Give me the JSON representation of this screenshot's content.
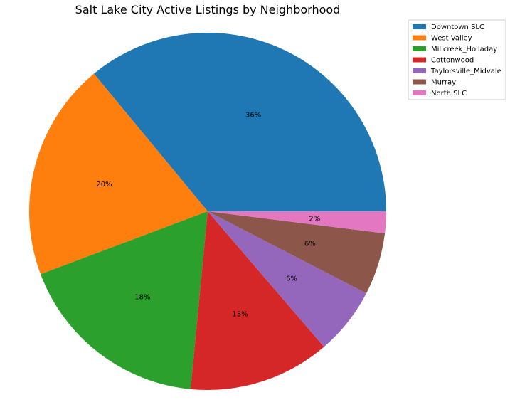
{
  "chart_data": {
    "type": "pie",
    "title": "Salt Lake City Active Listings by Neighborhood",
    "start_angle_deg": 0,
    "direction": "counterclockwise",
    "legend_position": "top-right",
    "slices": [
      {
        "label": "Downtown SLC",
        "value": 36.5,
        "pct_label": "36%",
        "color": "#1f77b4"
      },
      {
        "label": "West Valley",
        "value": 20.0,
        "pct_label": "20%",
        "color": "#ff7f0e"
      },
      {
        "label": "Millcreek_Holladay",
        "value": 18.0,
        "pct_label": "18%",
        "color": "#2ca02c"
      },
      {
        "label": "Cottonwood",
        "value": 13.0,
        "pct_label": "13%",
        "color": "#d62728"
      },
      {
        "label": "Taylorsville_Midvale",
        "value": 6.2,
        "pct_label": "6%",
        "color": "#9467bd"
      },
      {
        "label": "Murray",
        "value": 5.7,
        "pct_label": "6%",
        "color": "#8c564b"
      },
      {
        "label": "North SLC",
        "value": 2.0,
        "pct_label": "2%",
        "color": "#e377c2"
      }
    ]
  }
}
